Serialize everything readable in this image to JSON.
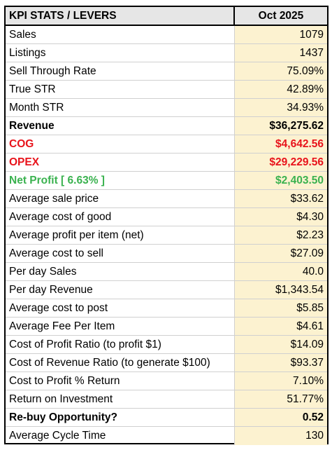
{
  "table": {
    "header": {
      "label": "KPI STATS / LEVERS",
      "value": "Oct 2025"
    },
    "rows": [
      {
        "label": "Sales",
        "value": "1079",
        "style": "normal"
      },
      {
        "label": "Listings",
        "value": "1437",
        "style": "normal"
      },
      {
        "label": "Sell Through Rate",
        "value": "75.09%",
        "style": "normal"
      },
      {
        "label": "True STR",
        "value": "42.89%",
        "style": "normal"
      },
      {
        "label": "Month STR",
        "value": "34.93%",
        "style": "normal"
      },
      {
        "label": "Revenue",
        "value": "$36,275.62",
        "style": "bold"
      },
      {
        "label": "COG",
        "value": "$4,642.56",
        "style": "red"
      },
      {
        "label": "OPEX",
        "value": "$29,229.56",
        "style": "red"
      },
      {
        "label": "Net Profit [ 6.63% ]",
        "value": "$2,403.50",
        "style": "green"
      },
      {
        "label": "Average sale price",
        "value": "$33.62",
        "style": "normal"
      },
      {
        "label": "Average cost of good",
        "value": "$4.30",
        "style": "normal"
      },
      {
        "label": "Average profit per item (net)",
        "value": "$2.23",
        "style": "normal"
      },
      {
        "label": "Average cost to sell",
        "value": "$27.09",
        "style": "normal"
      },
      {
        "label": "Per day Sales",
        "value": "40.0",
        "style": "normal"
      },
      {
        "label": "Per day Revenue",
        "value": "$1,343.54",
        "style": "normal"
      },
      {
        "label": "Average cost to post",
        "value": "$5.85",
        "style": "normal"
      },
      {
        "label": "Average Fee Per Item",
        "value": "$4.61",
        "style": "normal"
      },
      {
        "label": "Cost of Profit Ratio (to profit $1)",
        "value": "$14.09",
        "style": "normal"
      },
      {
        "label": "Cost of Revenue Ratio (to generate $100)",
        "value": "$93.37",
        "style": "normal"
      },
      {
        "label": "Cost to Profit % Return",
        "value": "7.10%",
        "style": "normal"
      },
      {
        "label": "Return on Investment",
        "value": "51.77%",
        "style": "normal"
      },
      {
        "label": "Re-buy Opportunity?",
        "value": "0.52",
        "style": "bold"
      },
      {
        "label": "Average Cycle Time",
        "value": "130",
        "style": "normal"
      }
    ]
  },
  "colors": {
    "header_bg": "#e6e6e6",
    "value_bg": "#fcf2d0",
    "red": "#e8131b",
    "green": "#3ab24f"
  }
}
